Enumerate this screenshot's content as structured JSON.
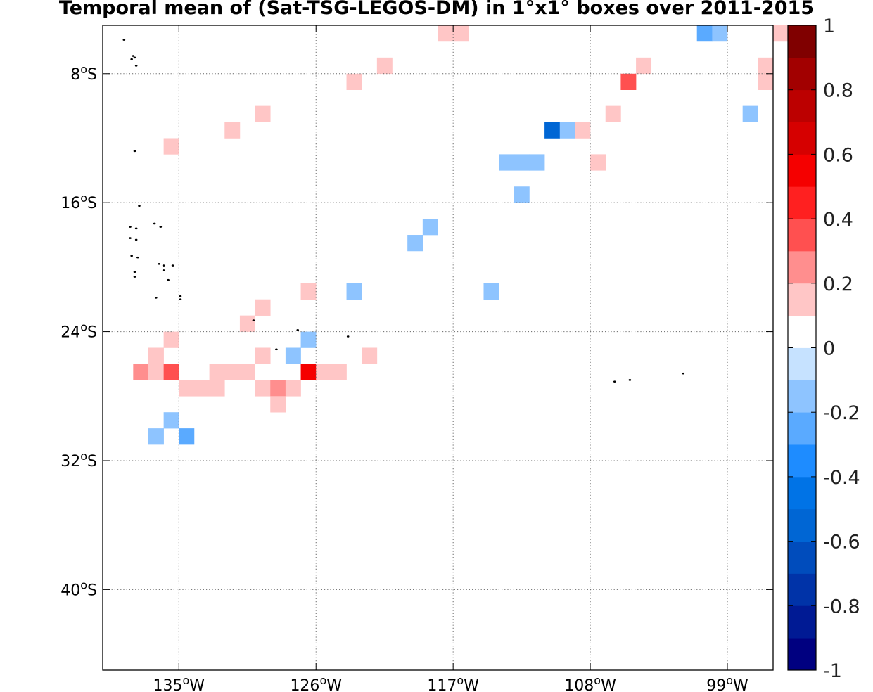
{
  "title": "Temporal mean of (Sat-TSG-LEGOS-DM) in 1°x1° boxes over 2011-2015",
  "chart_data": {
    "type": "heatmap",
    "title": "Temporal mean of (Sat-TSG-LEGOS-DM) in 1°x1° boxes over 2011-2015",
    "xlim": [
      -140,
      -96
    ],
    "ylim": [
      -45,
      -5
    ],
    "x_ticks": [
      {
        "value": -135,
        "label": "135",
        "unit": "oW"
      },
      {
        "value": -126,
        "label": "126",
        "unit": "oW"
      },
      {
        "value": -117,
        "label": "117",
        "unit": "oW"
      },
      {
        "value": -108,
        "label": "108",
        "unit": "oW"
      },
      {
        "value": -99,
        "label": "99",
        "unit": "oW"
      }
    ],
    "y_ticks": [
      {
        "value": -8,
        "label": "8",
        "unit": "oS"
      },
      {
        "value": -16,
        "label": "16",
        "unit": "oS"
      },
      {
        "value": -24,
        "label": "24",
        "unit": "oS"
      },
      {
        "value": -32,
        "label": "32",
        "unit": "oS"
      },
      {
        "value": -40,
        "label": "40",
        "unit": "oS"
      }
    ],
    "grid": true,
    "colorbar": {
      "min": -1,
      "max": 1,
      "step": 0.1,
      "colors": [
        "#000080",
        "#001a94",
        "#0033a8",
        "#004cbc",
        "#0066d4",
        "#0073e6",
        "#1e8cff",
        "#5aaaff",
        "#8ec4ff",
        "#c6e2ff",
        "#ffffff",
        "#ffc6c6",
        "#ff8e8e",
        "#ff5050",
        "#ff2020",
        "#f50000",
        "#d60000",
        "#bc0000",
        "#a20000",
        "#800000"
      ],
      "tick_labels": [
        {
          "value": 1,
          "label": "1"
        },
        {
          "value": 0.8,
          "label": "0.8"
        },
        {
          "value": 0.6,
          "label": "0.6"
        },
        {
          "value": 0.4,
          "label": "0.4"
        },
        {
          "value": 0.2,
          "label": "0.2"
        },
        {
          "value": 0,
          "label": "0"
        },
        {
          "value": -0.2,
          "label": "-0.2"
        },
        {
          "value": -0.4,
          "label": "-0.4"
        },
        {
          "value": -0.6,
          "label": "-0.6"
        },
        {
          "value": -0.8,
          "label": "-0.8"
        },
        {
          "value": -1,
          "label": "-1"
        }
      ]
    },
    "cells": [
      {
        "lon": -117.5,
        "lat": -5.5,
        "v": 0.15
      },
      {
        "lon": -116.5,
        "lat": -5.5,
        "v": 0.15
      },
      {
        "lon": -100.5,
        "lat": -5.5,
        "v": -0.25
      },
      {
        "lon": -99.5,
        "lat": -5.5,
        "v": -0.15
      },
      {
        "lon": -95.5,
        "lat": -5.5,
        "v": 0.15
      },
      {
        "lon": -121.5,
        "lat": -7.5,
        "v": 0.15
      },
      {
        "lon": -104.5,
        "lat": -7.5,
        "v": 0.15
      },
      {
        "lon": -96.5,
        "lat": -7.5,
        "v": 0.15
      },
      {
        "lon": -123.5,
        "lat": -8.5,
        "v": 0.15
      },
      {
        "lon": -105.5,
        "lat": -8.5,
        "v": 0.35
      },
      {
        "lon": -96.5,
        "lat": -8.5,
        "v": 0.15
      },
      {
        "lon": -129.5,
        "lat": -10.5,
        "v": 0.15
      },
      {
        "lon": -106.5,
        "lat": -10.5,
        "v": 0.15
      },
      {
        "lon": -97.5,
        "lat": -10.5,
        "v": -0.15
      },
      {
        "lon": -131.5,
        "lat": -11.5,
        "v": 0.15
      },
      {
        "lon": -110.5,
        "lat": -11.5,
        "v": -0.55
      },
      {
        "lon": -109.5,
        "lat": -11.5,
        "v": -0.15
      },
      {
        "lon": -108.5,
        "lat": -11.5,
        "v": 0.15
      },
      {
        "lon": -135.5,
        "lat": -12.5,
        "v": 0.15
      },
      {
        "lon": -113.5,
        "lat": -13.5,
        "v": -0.15
      },
      {
        "lon": -112.5,
        "lat": -13.5,
        "v": -0.15
      },
      {
        "lon": -111.5,
        "lat": -13.5,
        "v": -0.15
      },
      {
        "lon": -107.5,
        "lat": -13.5,
        "v": 0.15
      },
      {
        "lon": -112.5,
        "lat": -15.5,
        "v": -0.15
      },
      {
        "lon": -118.5,
        "lat": -17.5,
        "v": -0.15
      },
      {
        "lon": -119.5,
        "lat": -18.5,
        "v": -0.15
      },
      {
        "lon": -126.5,
        "lat": -21.5,
        "v": 0.15
      },
      {
        "lon": -123.5,
        "lat": -21.5,
        "v": -0.15
      },
      {
        "lon": -114.5,
        "lat": -21.5,
        "v": -0.15
      },
      {
        "lon": -129.5,
        "lat": -22.5,
        "v": 0.15
      },
      {
        "lon": -130.5,
        "lat": -23.5,
        "v": 0.15
      },
      {
        "lon": -135.5,
        "lat": -24.5,
        "v": 0.15
      },
      {
        "lon": -126.5,
        "lat": -24.5,
        "v": -0.15
      },
      {
        "lon": -136.5,
        "lat": -25.5,
        "v": 0.15
      },
      {
        "lon": -129.5,
        "lat": -25.5,
        "v": 0.15
      },
      {
        "lon": -127.5,
        "lat": -25.5,
        "v": -0.15
      },
      {
        "lon": -122.5,
        "lat": -25.5,
        "v": 0.15
      },
      {
        "lon": -137.5,
        "lat": -26.5,
        "v": 0.25
      },
      {
        "lon": -136.5,
        "lat": -26.5,
        "v": 0.15
      },
      {
        "lon": -135.5,
        "lat": -26.5,
        "v": 0.35
      },
      {
        "lon": -132.5,
        "lat": -26.5,
        "v": 0.15
      },
      {
        "lon": -131.5,
        "lat": -26.5,
        "v": 0.15
      },
      {
        "lon": -130.5,
        "lat": -26.5,
        "v": 0.15
      },
      {
        "lon": -126.5,
        "lat": -26.5,
        "v": 0.55
      },
      {
        "lon": -125.5,
        "lat": -26.5,
        "v": 0.15
      },
      {
        "lon": -124.5,
        "lat": -26.5,
        "v": 0.15
      },
      {
        "lon": -134.5,
        "lat": -27.5,
        "v": 0.15
      },
      {
        "lon": -133.5,
        "lat": -27.5,
        "v": 0.15
      },
      {
        "lon": -132.5,
        "lat": -27.5,
        "v": 0.15
      },
      {
        "lon": -129.5,
        "lat": -27.5,
        "v": 0.15
      },
      {
        "lon": -128.5,
        "lat": -27.5,
        "v": 0.25
      },
      {
        "lon": -127.5,
        "lat": -27.5,
        "v": 0.15
      },
      {
        "lon": -128.5,
        "lat": -28.5,
        "v": 0.15
      },
      {
        "lon": -135.5,
        "lat": -29.5,
        "v": -0.15
      },
      {
        "lon": -136.5,
        "lat": -30.5,
        "v": -0.15
      },
      {
        "lon": -134.5,
        "lat": -30.5,
        "v": -0.25
      }
    ],
    "islands": [
      [
        -138.6,
        -5.9
      ],
      [
        -138.0,
        -6.9
      ],
      [
        -137.9,
        -7.0
      ],
      [
        -138.1,
        -7.1
      ],
      [
        -137.8,
        -7.5
      ],
      [
        -137.9,
        -12.8
      ],
      [
        -137.6,
        -16.2
      ],
      [
        -138.2,
        -17.5
      ],
      [
        -137.8,
        -17.6
      ],
      [
        -136.6,
        -17.3
      ],
      [
        -136.2,
        -17.5
      ],
      [
        -138.2,
        -18.2
      ],
      [
        -137.8,
        -18.3
      ],
      [
        -138.1,
        -19.3
      ],
      [
        -137.7,
        -19.4
      ],
      [
        -136.3,
        -19.8
      ],
      [
        -136.0,
        -19.9
      ],
      [
        -135.4,
        -19.9
      ],
      [
        -136.0,
        -20.2
      ],
      [
        -137.9,
        -20.3
      ],
      [
        -137.9,
        -20.6
      ],
      [
        -135.7,
        -20.8
      ],
      [
        -136.5,
        -21.9
      ],
      [
        -134.9,
        -21.8
      ],
      [
        -134.9,
        -22.0
      ],
      [
        -130.1,
        -23.3
      ],
      [
        -127.2,
        -23.9
      ],
      [
        -123.9,
        -24.3
      ],
      [
        -128.6,
        -25.1
      ],
      [
        -106.4,
        -27.1
      ],
      [
        -105.4,
        -27.0
      ],
      [
        -101.9,
        -26.6
      ]
    ]
  }
}
